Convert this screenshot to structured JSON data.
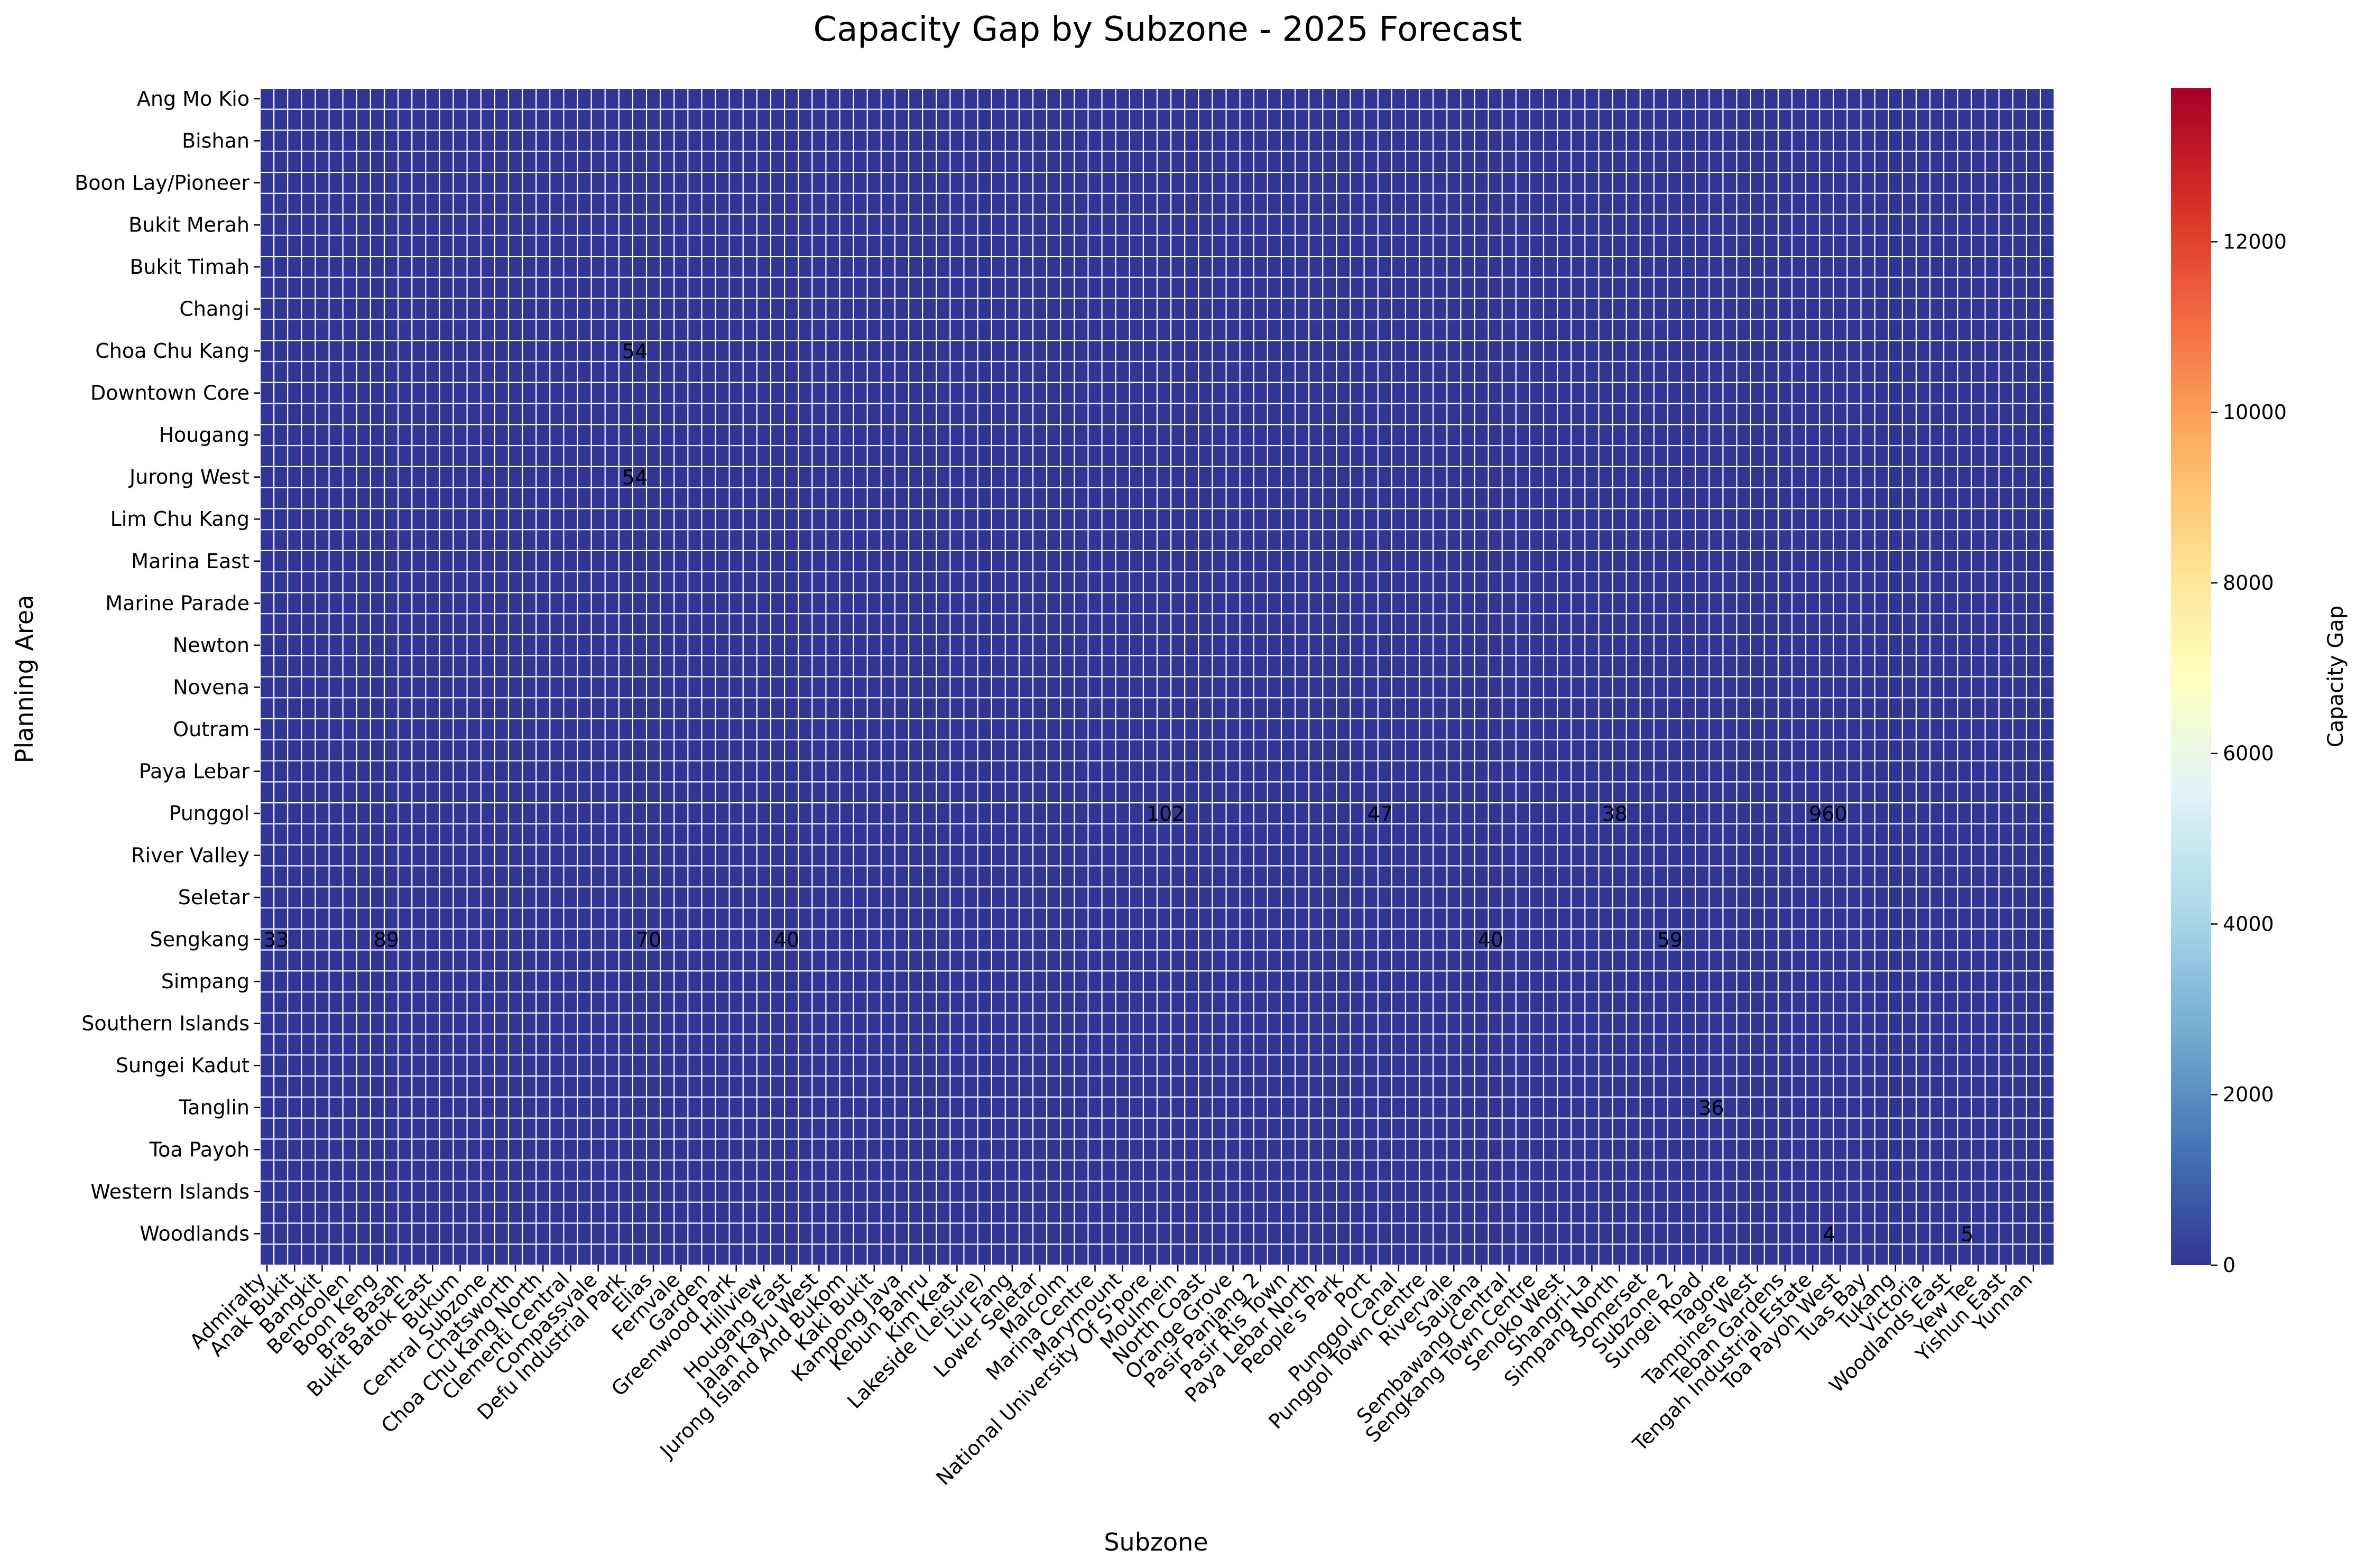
{
  "chart_data": {
    "type": "heatmap",
    "title": "Capacity Gap by Subzone - 2025 Forecast",
    "xlabel": "Subzone",
    "ylabel": "Planning Area",
    "colorbar": {
      "label": "Capacity Gap",
      "colormap": "RdYlBu_r",
      "range": [
        0,
        13800
      ],
      "ticks": [
        0,
        2000,
        4000,
        6000,
        8000,
        10000,
        12000
      ],
      "colors": [
        "#313695",
        "#4575b4",
        "#74add1",
        "#abd9e9",
        "#e0f3f8",
        "#ffffbf",
        "#fee090",
        "#fdae61",
        "#f46d43",
        "#d73027",
        "#a50026"
      ]
    },
    "y_tick_labels": [
      "Ang Mo Kio",
      "Bishan",
      "Boon Lay/Pioneer",
      "Bukit Merah",
      "Bukit Timah",
      "Changi",
      "Choa Chu Kang",
      "Downtown Core",
      "Hougang",
      "Jurong West",
      "Lim Chu Kang",
      "Marina East",
      "Marine Parade",
      "Newton",
      "Novena",
      "Outram",
      "Paya Lebar",
      "Punggol",
      "River Valley",
      "Seletar",
      "Sengkang",
      "Simpang",
      "Southern Islands",
      "Sungei Kadut",
      "Tanglin",
      "Toa Payoh",
      "Western Islands",
      "Woodlands"
    ],
    "x_tick_labels": [
      "Admiralty",
      "Anak Bukit",
      "Bangkit",
      "Bencoolen",
      "Boon Keng",
      "Bras Basah",
      "Bukit Batok East",
      "Bukum",
      "Central Subzone",
      "Chatsworth",
      "Choa Chu Kang North",
      "Clementi Central",
      "Compassvale",
      "Defu Industrial Park",
      "Elias",
      "Fernvale",
      "Garden",
      "Greenwood Park",
      "Hillview",
      "Hougang East",
      "Jalan Kayu West",
      "Jurong Island And Bukom",
      "Kaki Bukit",
      "Kampong Java",
      "Kebun Bahru",
      "Kim Keat",
      "Lakeside (Leisure)",
      "Liu Fang",
      "Lower Seletar",
      "Malcolm",
      "Marina Centre",
      "Marymount",
      "National University Of S'pore",
      "Moulmein",
      "North Coast",
      "Orange Grove",
      "Pasir Panjang 2",
      "Pasir Ris Town",
      "Paya Lebar North",
      "People's Park",
      "Port",
      "Punggol Canal",
      "Punggol Town Centre",
      "Rivervale",
      "Saujana",
      "Sembawang Central",
      "Sengkang Town Centre",
      "Senoko West",
      "Shangri-La",
      "Simpang North",
      "Somerset",
      "Subzone 2",
      "Sungei Road",
      "Tagore",
      "Tampines West",
      "Teban Gardens",
      "Tengah Industrial Estate",
      "Toa Payoh West",
      "Tuas Bay",
      "Tukang",
      "Victoria",
      "Woodlands East",
      "Yew Tee",
      "Yishun East",
      "Yunnan"
    ],
    "grid_rows": 56,
    "grid_cols": 130,
    "cell_annotations": [
      {
        "row": 6,
        "col": 26,
        "text": "54"
      },
      {
        "row": 9,
        "col": 26,
        "text": "54"
      },
      {
        "row": 17,
        "col": 64,
        "text": "102"
      },
      {
        "row": 17,
        "col": 80,
        "text": "47"
      },
      {
        "row": 17,
        "col": 97,
        "text": "38"
      },
      {
        "row": 17,
        "col": 112,
        "text": "960"
      },
      {
        "row": 20,
        "col": 0,
        "text": "33"
      },
      {
        "row": 20,
        "col": 8,
        "text": "89"
      },
      {
        "row": 20,
        "col": 27,
        "text": "70"
      },
      {
        "row": 20,
        "col": 37,
        "text": "40"
      },
      {
        "row": 20,
        "col": 88,
        "text": "40"
      },
      {
        "row": 20,
        "col": 101,
        "text": "59"
      },
      {
        "row": 24,
        "col": 104,
        "text": "36"
      },
      {
        "row": 27,
        "col": 113,
        "text": "4"
      },
      {
        "row": 27,
        "col": 123,
        "text": "5"
      }
    ]
  }
}
